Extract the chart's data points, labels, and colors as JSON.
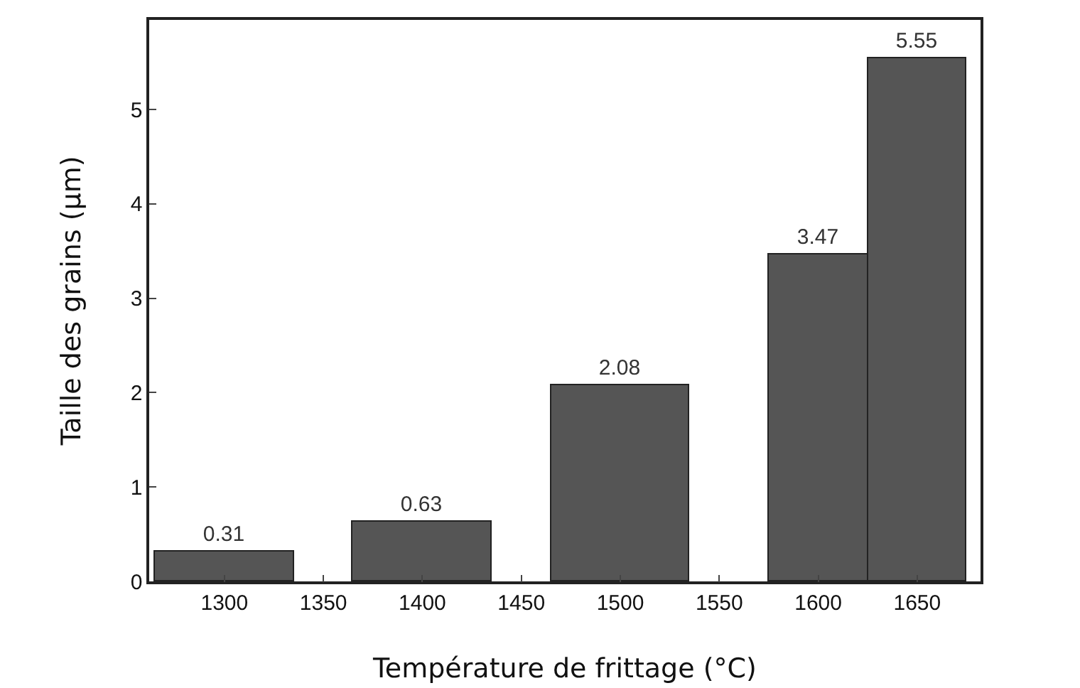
{
  "chart_data": {
    "type": "bar",
    "xlabel": "Température de frittage (°C)",
    "ylabel": "Taille des grains (µm)",
    "x": [
      1300,
      1400,
      1500,
      1600,
      1650
    ],
    "values": [
      0.31,
      0.63,
      2.08,
      3.47,
      5.55
    ],
    "color": "#555555",
    "xlim": [
      1262,
      1682
    ],
    "xticks": [
      1300,
      1350,
      1400,
      1450,
      1500,
      1550,
      1600,
      1650
    ],
    "ylim": [
      0,
      5.95
    ],
    "yticks": [
      0,
      1,
      2,
      3,
      4,
      5
    ],
    "data_labels": true,
    "grid": false,
    "legend": false
  }
}
